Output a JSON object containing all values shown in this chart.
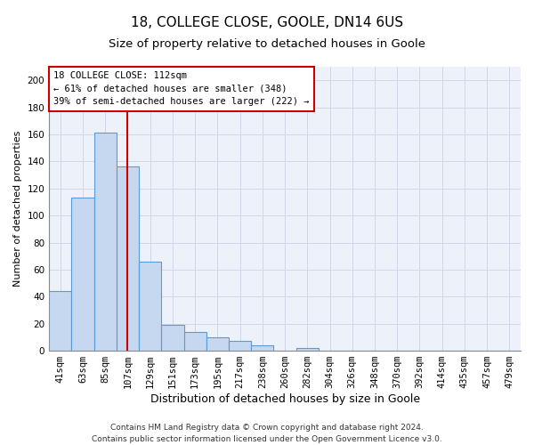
{
  "title": "18, COLLEGE CLOSE, GOOLE, DN14 6US",
  "subtitle": "Size of property relative to detached houses in Goole",
  "xlabel": "Distribution of detached houses by size in Goole",
  "ylabel": "Number of detached properties",
  "bar_values": [
    44,
    113,
    161,
    136,
    66,
    19,
    14,
    10,
    7,
    4,
    0,
    2,
    0,
    0,
    0,
    0,
    0,
    0,
    0,
    0,
    0
  ],
  "categories": [
    "41sqm",
    "63sqm",
    "85sqm",
    "107sqm",
    "129sqm",
    "151sqm",
    "173sqm",
    "195sqm",
    "217sqm",
    "238sqm",
    "260sqm",
    "282sqm",
    "304sqm",
    "326sqm",
    "348sqm",
    "370sqm",
    "392sqm",
    "414sqm",
    "435sqm",
    "457sqm",
    "479sqm"
  ],
  "bar_color": "#c5d8ef",
  "bar_edge_color": "#5b9bd5",
  "vline_x": 3,
  "vline_color": "#cc0000",
  "annotation_text": "18 COLLEGE CLOSE: 112sqm\n← 61% of detached houses are smaller (348)\n39% of semi-detached houses are larger (222) →",
  "annotation_box_color": "#ffffff",
  "annotation_box_edge": "#cc0000",
  "ylim": [
    0,
    210
  ],
  "yticks": [
    0,
    20,
    40,
    60,
    80,
    100,
    120,
    140,
    160,
    180,
    200
  ],
  "grid_color": "#d0d8e8",
  "background_color": "#edf2fa",
  "footer": "Contains HM Land Registry data © Crown copyright and database right 2024.\nContains public sector information licensed under the Open Government Licence v3.0.",
  "title_fontsize": 11,
  "subtitle_fontsize": 9.5,
  "xlabel_fontsize": 9,
  "ylabel_fontsize": 8,
  "tick_fontsize": 7.5,
  "annotation_fontsize": 7.5,
  "footer_fontsize": 6.5
}
